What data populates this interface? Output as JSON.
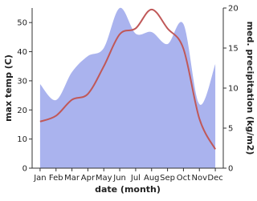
{
  "chart_data": {
    "type": "line",
    "x_label": "date (month)",
    "y_label": "max temp (C)",
    "y2_label": "med. precipitation (kg/m2)",
    "categories": [
      "Jan",
      "Feb",
      "Mar",
      "Apr",
      "May",
      "Jun",
      "Jul",
      "Aug",
      "Sep",
      "Oct",
      "Nov",
      "Dec"
    ],
    "series": [
      {
        "name": "med. precipitation",
        "type": "area",
        "axis": "y2",
        "color": "#aab3ee",
        "values": [
          10.5,
          8.5,
          12,
          14,
          15,
          20,
          16.8,
          17,
          15.5,
          18,
          8,
          13
        ]
      },
      {
        "name": "max temp",
        "type": "line",
        "color": "#c05858",
        "values": [
          16,
          18,
          23.5,
          25.5,
          35,
          46,
          48,
          54.5,
          48,
          41,
          17,
          6.5
        ]
      }
    ],
    "ylim": [
      0,
      55
    ],
    "yticks": [
      0,
      10,
      20,
      30,
      40,
      50
    ],
    "y2lim": [
      0,
      20
    ],
    "y2ticks": [
      0,
      5,
      10,
      15,
      20
    ]
  }
}
